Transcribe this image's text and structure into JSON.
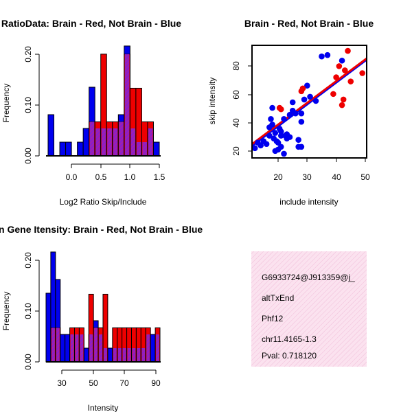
{
  "chart_data": [
    {
      "type": "bar",
      "title": "RatioData: Brain - Red, Not Brain - Blue",
      "xlabel": "Log2 Ratio Skip/Include",
      "ylabel": "Frequency",
      "xticks": [
        "0.0",
        "0.5",
        "1.0",
        "1.5"
      ],
      "yticks": [
        "0.00",
        "0.10",
        "0.20"
      ],
      "bin_width": 0.1,
      "bins_start": [
        -0.4,
        -0.3,
        -0.2,
        -0.1,
        0.0,
        0.1,
        0.2,
        0.3,
        0.4,
        0.5,
        0.6,
        0.7,
        0.8,
        0.9,
        1.0,
        1.1,
        1.2,
        1.3,
        1.4
      ],
      "xlim": [
        -0.4,
        1.5
      ],
      "ylim": [
        0,
        0.22
      ],
      "series": [
        {
          "name": "Not Brain",
          "color": "#0000ee",
          "values": [
            0.081,
            0,
            0.027,
            0.027,
            0,
            0.027,
            0.054,
            0.135,
            0.054,
            0.054,
            0.054,
            0.054,
            0.081,
            0.216,
            0.054,
            0.027,
            0.027,
            0.054,
            0.027
          ]
        },
        {
          "name": "Brain",
          "color": "#ee0000",
          "values": [
            0,
            0,
            0,
            0,
            0,
            0,
            0,
            0.067,
            0.067,
            0.2,
            0.067,
            0.067,
            0.067,
            0.2,
            0.133,
            0.133,
            0.067,
            0.067,
            0
          ]
        }
      ]
    },
    {
      "type": "scatter",
      "title": "Brain - Red, Not Brain - Blue",
      "xlabel": "include intensity",
      "ylabel": "skip intensity",
      "xticks": [
        "20",
        "30",
        "40",
        "50"
      ],
      "yticks": [
        "20",
        "40",
        "60",
        "80"
      ],
      "xlim": [
        11,
        50.5
      ],
      "ylim": [
        14,
        95
      ],
      "series": [
        {
          "name": "Not Brain",
          "color": "#0000ee",
          "x": [
            12,
            13,
            14,
            15,
            16,
            17,
            17.5,
            18,
            18.5,
            19,
            19.5,
            20,
            20.5,
            21,
            21,
            22,
            22.5,
            23,
            24,
            25,
            26,
            27,
            28,
            29,
            30,
            31,
            27,
            28,
            22,
            20,
            24,
            35,
            37,
            42,
            18,
            19,
            21,
            23,
            25,
            28,
            33,
            17
          ],
          "y": [
            21,
            25,
            23,
            26,
            24,
            30,
            42,
            38,
            28,
            32,
            26,
            25,
            35,
            30,
            22,
            42,
            30,
            31,
            45,
            54,
            46,
            27,
            40,
            56,
            66,
            58,
            22,
            22,
            17,
            20,
            29,
            87,
            88,
            84,
            50,
            19,
            33,
            28,
            48,
            46,
            55,
            36
          ]
        },
        {
          "name": "Brain",
          "color": "#ee0000",
          "x": [
            20.5,
            21,
            28,
            28.5,
            39,
            40,
            41,
            42,
            42.5,
            43,
            44,
            45,
            49
          ],
          "y": [
            50,
            49,
            62,
            64,
            60,
            72,
            80,
            52,
            56,
            77,
            91,
            69,
            75
          ]
        }
      ],
      "fits": [
        {
          "name": "Not Brain fit",
          "color": "#0000ee",
          "intercept": 5.4,
          "slope": 1.57
        },
        {
          "name": "Brain fit",
          "color": "#ee0000",
          "intercept": 6.8,
          "slope": 1.56
        }
      ]
    },
    {
      "type": "bar",
      "title": "Mean Gene Itensity: Brain - Red, Not Brain - Blue",
      "xlabel": "Intensity",
      "ylabel": "Frequency",
      "xticks": [
        "30",
        "50",
        "70",
        "90"
      ],
      "yticks": [
        "0.00",
        "0.10",
        "0.20"
      ],
      "bin_width": 3,
      "bins_start": [
        20,
        23,
        26,
        29,
        32,
        35,
        38,
        41,
        44,
        47,
        50,
        53,
        56,
        59,
        62,
        65,
        68,
        71,
        74,
        77,
        80,
        83,
        86,
        89
      ],
      "xlim": [
        20,
        92
      ],
      "ylim": [
        0,
        0.22
      ],
      "series": [
        {
          "name": "Not Brain",
          "color": "#0000ee",
          "values": [
            0.135,
            0.216,
            0.162,
            0.054,
            0.054,
            0.054,
            0.054,
            0.054,
            0.027,
            0.054,
            0.081,
            0.054,
            0.027,
            0.027,
            0.027,
            0.027,
            0.027,
            0.027,
            0.027,
            0.027,
            0.027,
            0.054,
            0.054,
            0.054
          ]
        },
        {
          "name": "Brain",
          "color": "#ee0000",
          "values": [
            0,
            0.067,
            0.067,
            0,
            0,
            0.067,
            0.067,
            0.067,
            0,
            0.133,
            0.067,
            0.067,
            0.133,
            0,
            0.067,
            0.067,
            0.067,
            0.067,
            0.067,
            0.067,
            0.067,
            0.067,
            0,
            0.067
          ]
        }
      ]
    }
  ],
  "info_panel": {
    "id": "G6933724@J913359@j_",
    "event_type": "altTxEnd",
    "gene": "Phf12",
    "location": "chr11.4165-1.3",
    "pval": "Pval: 0.718120",
    "pval_color": "#aa0000",
    "background": "#f9dcec"
  }
}
